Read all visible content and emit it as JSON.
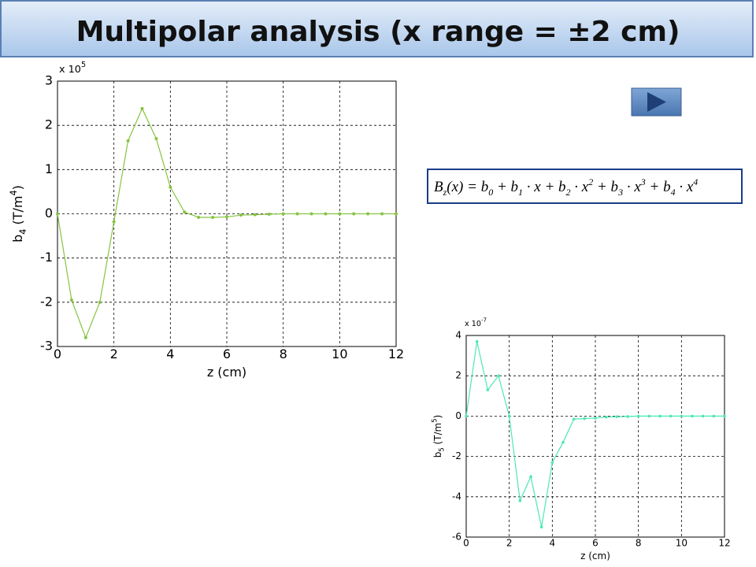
{
  "title": "Multipolar analysis (x range = ±2 cm)",
  "equation": [
    "B",
    "z",
    "(x) = b",
    "0",
    " + b",
    "1",
    " · x + b",
    "2",
    " · x",
    "2",
    " + b",
    "3",
    " · x",
    "3",
    " + b",
    "4",
    " · x",
    "4"
  ],
  "chart_data": [
    {
      "type": "line",
      "xlabel": "z (cm)",
      "ylabel": [
        "b",
        "4",
        " (T/m",
        "4",
        ")"
      ],
      "multiplier": [
        "x 10",
        "5"
      ],
      "x": [
        0,
        0.5,
        1,
        1.5,
        2,
        2.5,
        3,
        3.5,
        4,
        4.5,
        5,
        5.5,
        6,
        6.5,
        7,
        7.5,
        8,
        8.5,
        9,
        9.5,
        10,
        10.5,
        11,
        11.5,
        12
      ],
      "values": [
        0,
        -1.95,
        -2.8,
        -2.0,
        -0.18,
        1.65,
        2.38,
        1.7,
        0.6,
        0.04,
        -0.08,
        -0.08,
        -0.07,
        -0.03,
        -0.02,
        -0.01,
        0,
        0,
        0,
        0,
        0,
        0,
        0,
        0,
        0
      ],
      "color": "#86c440",
      "xlim": [
        0,
        12
      ],
      "xticks": [
        0,
        2,
        4,
        6,
        8,
        10,
        12
      ],
      "ylim": [
        -3,
        3
      ],
      "yticks": [
        -3,
        -2,
        -1,
        0,
        1,
        2,
        3
      ],
      "grid": true
    },
    {
      "type": "line",
      "xlabel": "z (cm)",
      "ylabel": [
        "b",
        "5",
        " (T/m",
        "5",
        ")"
      ],
      "multiplier": [
        "x 10",
        "-7"
      ],
      "x": [
        0,
        0.5,
        1,
        1.5,
        2,
        2.5,
        3,
        3.5,
        4,
        4.5,
        5,
        5.5,
        6,
        6.5,
        7,
        7.5,
        8,
        8.5,
        9,
        9.5,
        10,
        10.5,
        11,
        11.5,
        12
      ],
      "values": [
        0,
        3.7,
        1.3,
        2.0,
        0,
        -4.2,
        -3.0,
        -5.5,
        -2.3,
        -1.3,
        -0.15,
        -0.12,
        -0.1,
        -0.05,
        -0.03,
        -0.02,
        0,
        0,
        0,
        0,
        0,
        0,
        0,
        0,
        0
      ],
      "color": "#4de8b4",
      "xlim": [
        0,
        12
      ],
      "xticks": [
        0,
        2,
        4,
        6,
        8,
        10,
        12
      ],
      "ylim": [
        -6,
        4
      ],
      "yticks": [
        -6,
        -4,
        -2,
        0,
        2,
        4
      ],
      "grid": true
    }
  ]
}
